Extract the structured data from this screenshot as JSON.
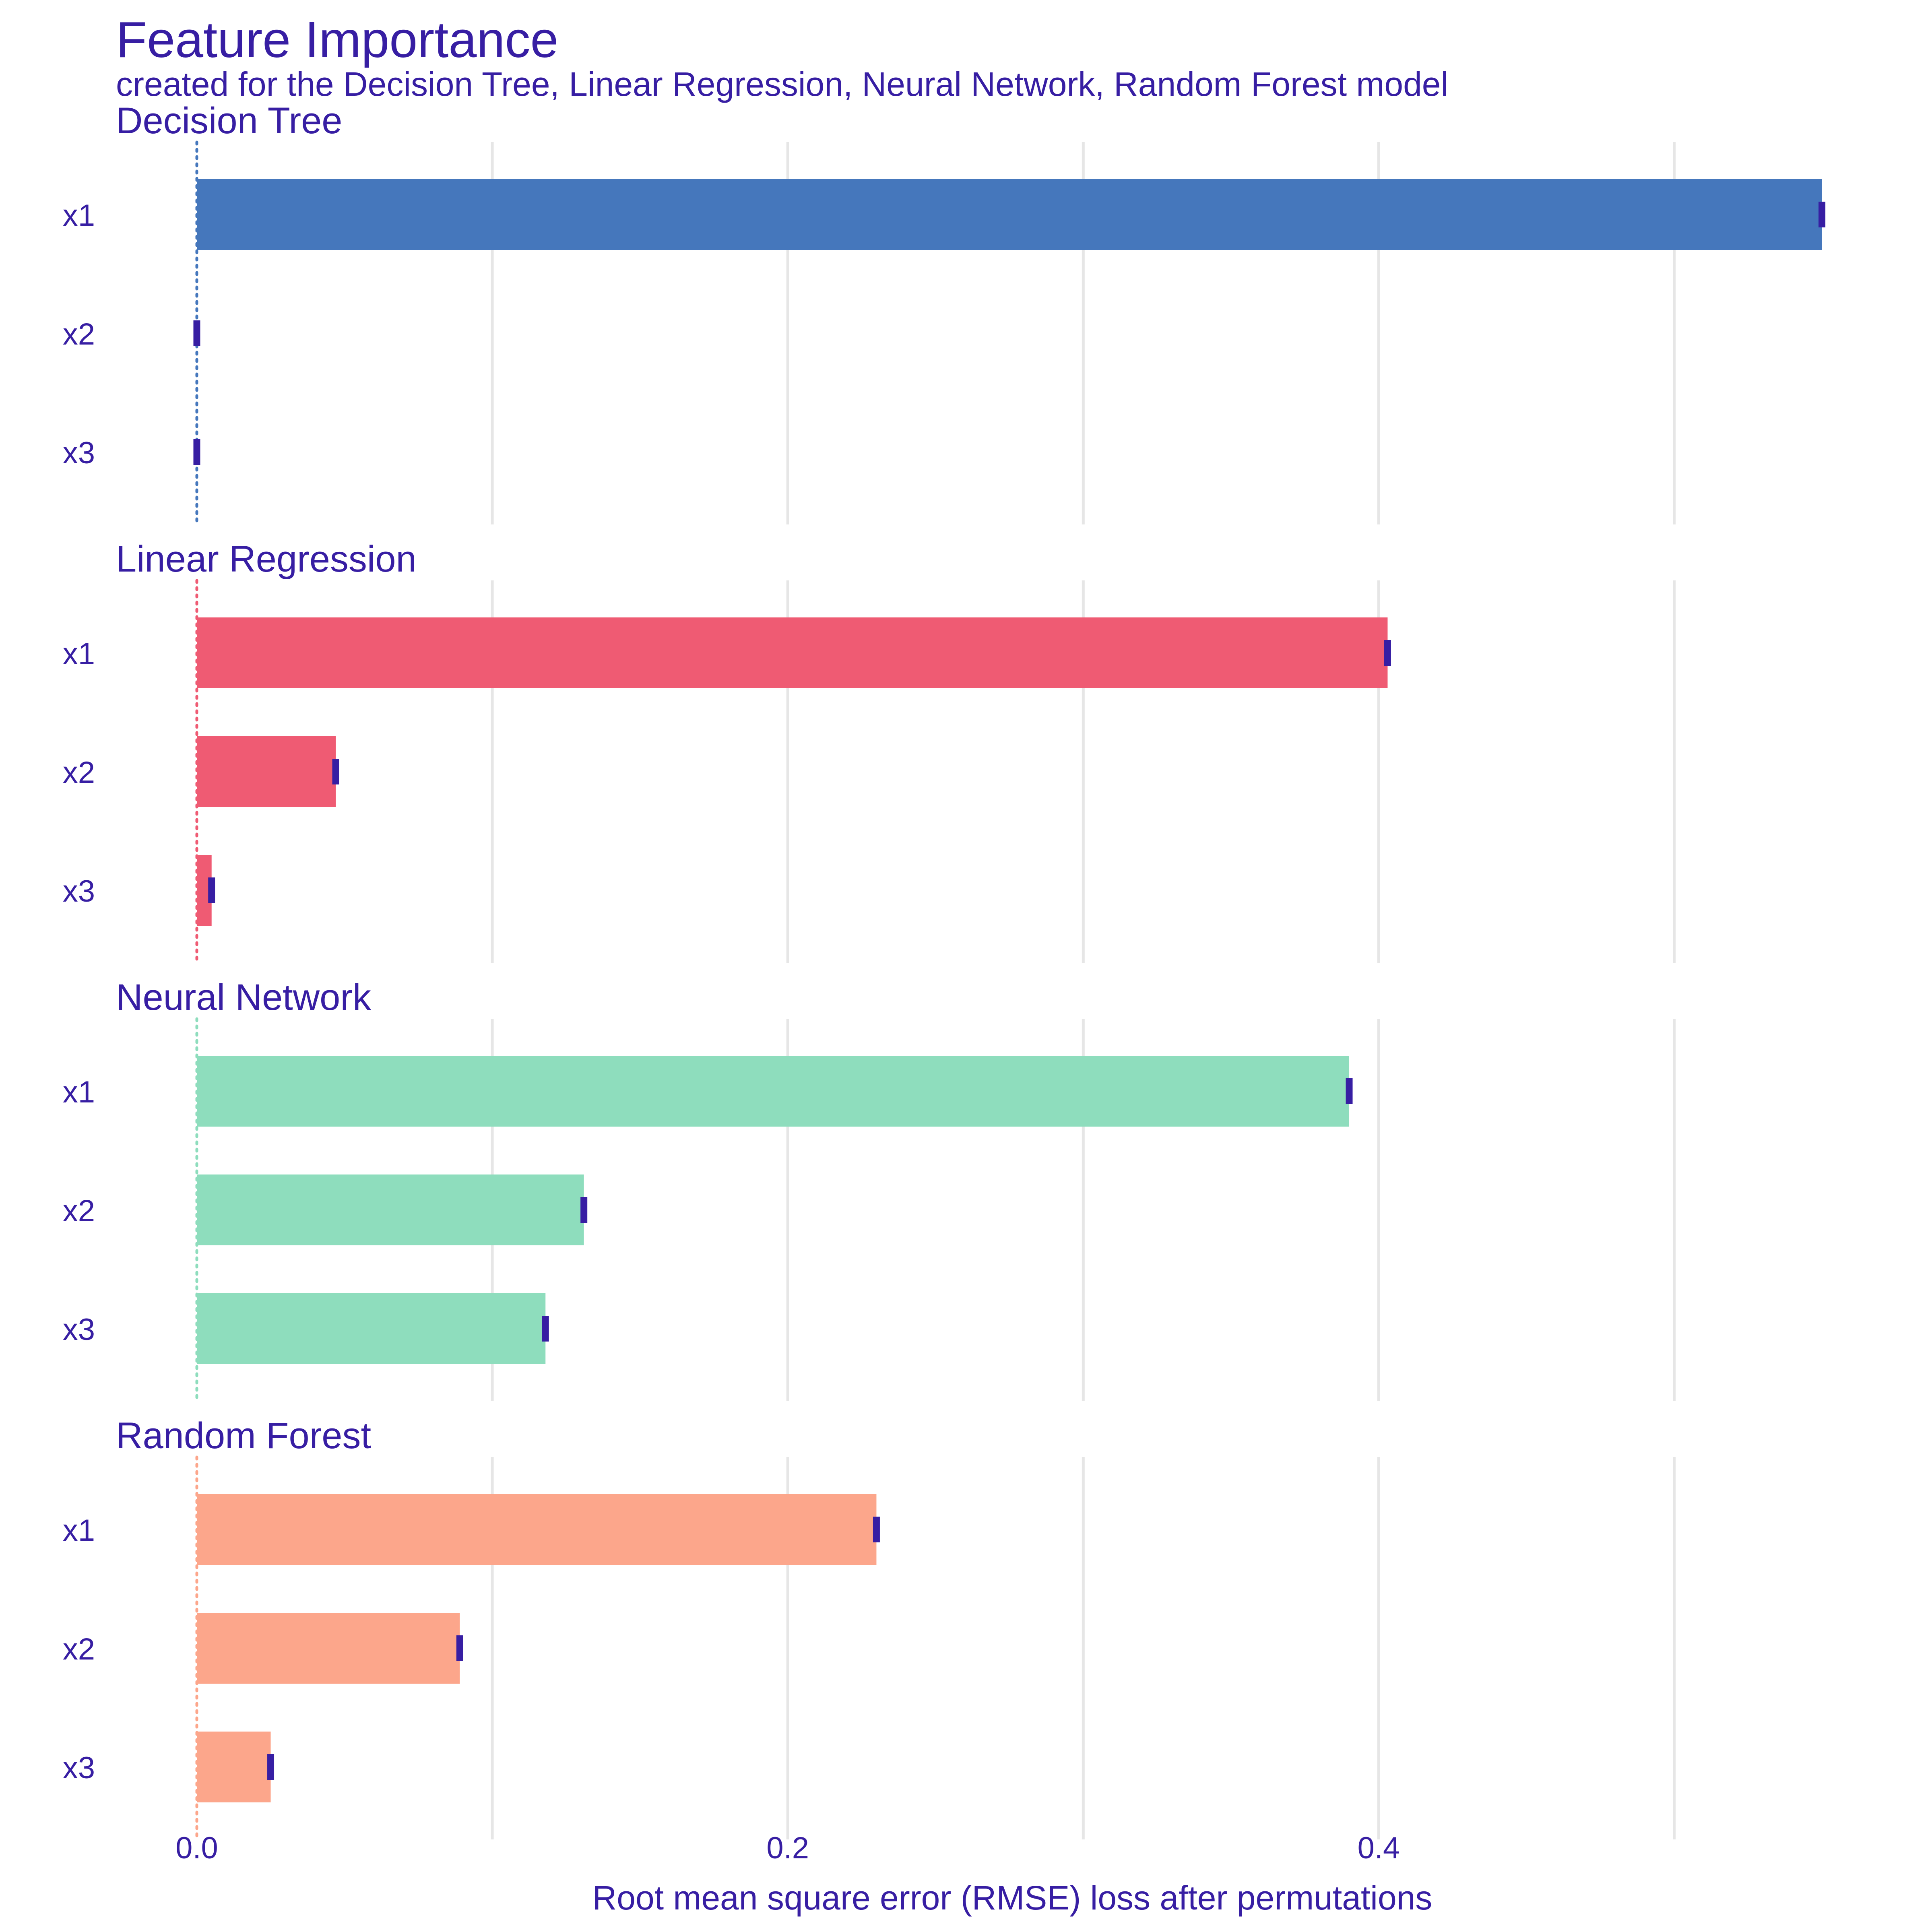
{
  "chart_data": {
    "type": "bar",
    "orientation": "horizontal",
    "title": "Feature Importance",
    "subtitle": "created for the Decision Tree, Linear Regression, Neural Network, Random Forest model",
    "xlabel": "Root mean square error (RMSE) loss after permutations",
    "xlim": [
      0,
      0.56
    ],
    "xticks": [
      {
        "value": 0.0,
        "label": "0.0"
      },
      {
        "value": 0.2,
        "label": "0.2"
      },
      {
        "value": 0.4,
        "label": "0.4"
      }
    ],
    "minor_gridlines": [
      0.1,
      0.3,
      0.5
    ],
    "grid": "vertical",
    "baseline": 0.0,
    "categories": [
      "x1",
      "x2",
      "x3"
    ],
    "series": [
      {
        "name": "Decision Tree",
        "color": "#4577BC",
        "values": [
          0.55,
          0.0,
          0.0
        ]
      },
      {
        "name": "Linear Regression",
        "color": "#EF5B73",
        "values": [
          0.403,
          0.047,
          0.005
        ]
      },
      {
        "name": "Neural Network",
        "color": "#8EDDBD",
        "values": [
          0.39,
          0.131,
          0.118
        ]
      },
      {
        "name": "Random Forest",
        "color": "#FCA68B",
        "values": [
          0.23,
          0.089,
          0.025
        ]
      }
    ],
    "marker_color": "#371EA3",
    "text_color": "#371EA3"
  }
}
